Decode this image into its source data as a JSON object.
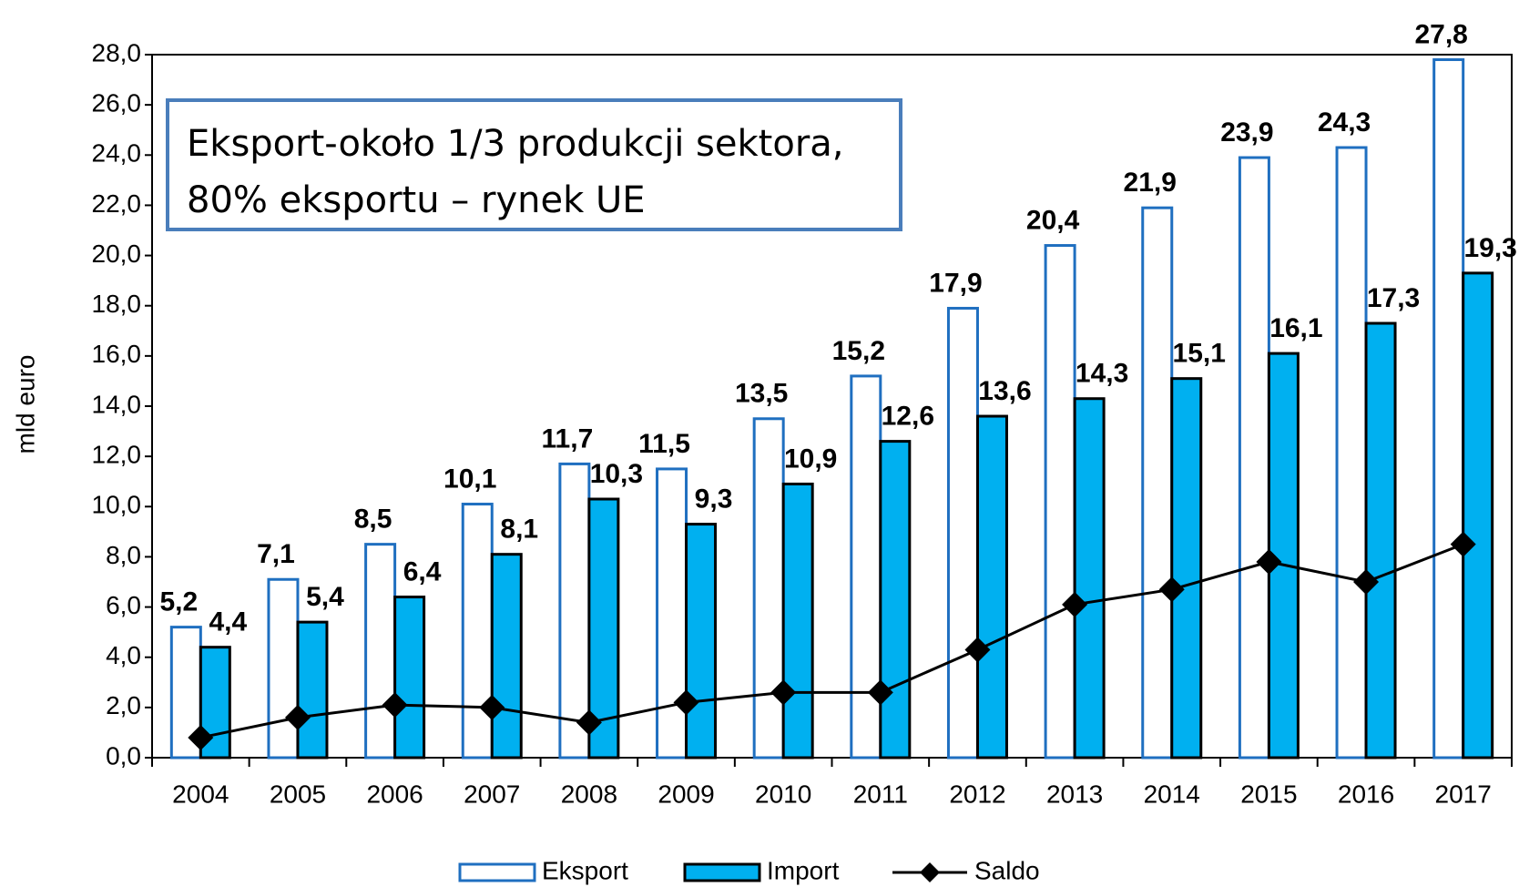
{
  "chart_data": {
    "type": "bar",
    "y_label": "mld euro",
    "annotation": [
      "Eksport-około 1/3 produkcji sektora,",
      "80% eksportu – rynek UE"
    ],
    "categories": [
      "2004",
      "2005",
      "2006",
      "2007",
      "2008",
      "2009",
      "2010",
      "2011",
      "2012",
      "2013",
      "2014",
      "2015",
      "2016",
      "2017"
    ],
    "series": [
      {
        "name": "Eksport",
        "type": "bar",
        "color": "#ffffff",
        "stroke": "#1f6fc0",
        "values": [
          5.2,
          7.1,
          8.5,
          10.1,
          11.7,
          11.5,
          13.5,
          15.2,
          17.9,
          20.4,
          21.9,
          23.9,
          24.3,
          27.8
        ],
        "value_labels": [
          "5,2",
          "7,1",
          "8,5",
          "10,1",
          "11,7",
          "11,5",
          "13,5",
          "15,2",
          "17,9",
          "20,4",
          "21,9",
          "23,9",
          "24,3",
          "27,8"
        ]
      },
      {
        "name": "Import",
        "type": "bar",
        "color": "#00b0f0",
        "stroke": "#000000",
        "values": [
          4.4,
          5.4,
          6.4,
          8.1,
          10.3,
          9.3,
          10.9,
          12.6,
          13.6,
          14.3,
          15.1,
          16.1,
          17.3,
          19.3
        ],
        "value_labels": [
          "4,4",
          "5,4",
          "6,4",
          "8,1",
          "10,3",
          "9,3",
          "10,9",
          "12,6",
          "13,6",
          "14,3",
          "15,1",
          "16,1",
          "17,3",
          "19,3"
        ]
      },
      {
        "name": "Saldo",
        "type": "line",
        "color": "#000000",
        "values": [
          0.8,
          1.6,
          2.1,
          2.0,
          1.4,
          2.2,
          2.6,
          2.6,
          4.3,
          6.1,
          6.7,
          7.8,
          7.0,
          8.5
        ]
      }
    ],
    "ylim": [
      0,
      28
    ],
    "yticks": [
      {
        "value": 0,
        "label": "0,0"
      },
      {
        "value": 2,
        "label": "2,0"
      },
      {
        "value": 4,
        "label": "4,0"
      },
      {
        "value": 6,
        "label": "6,0"
      },
      {
        "value": 8,
        "label": "8,0"
      },
      {
        "value": 10,
        "label": "10,0"
      },
      {
        "value": 12,
        "label": "12,0"
      },
      {
        "value": 14,
        "label": "14,0"
      },
      {
        "value": 16,
        "label": "16,0"
      },
      {
        "value": 18,
        "label": "18,0"
      },
      {
        "value": 20,
        "label": "20,0"
      },
      {
        "value": 22,
        "label": "22,0"
      },
      {
        "value": 24,
        "label": "24,0"
      },
      {
        "value": 26,
        "label": "26,0"
      },
      {
        "value": 28,
        "label": "28,0"
      }
    ],
    "legend": "bottom"
  }
}
